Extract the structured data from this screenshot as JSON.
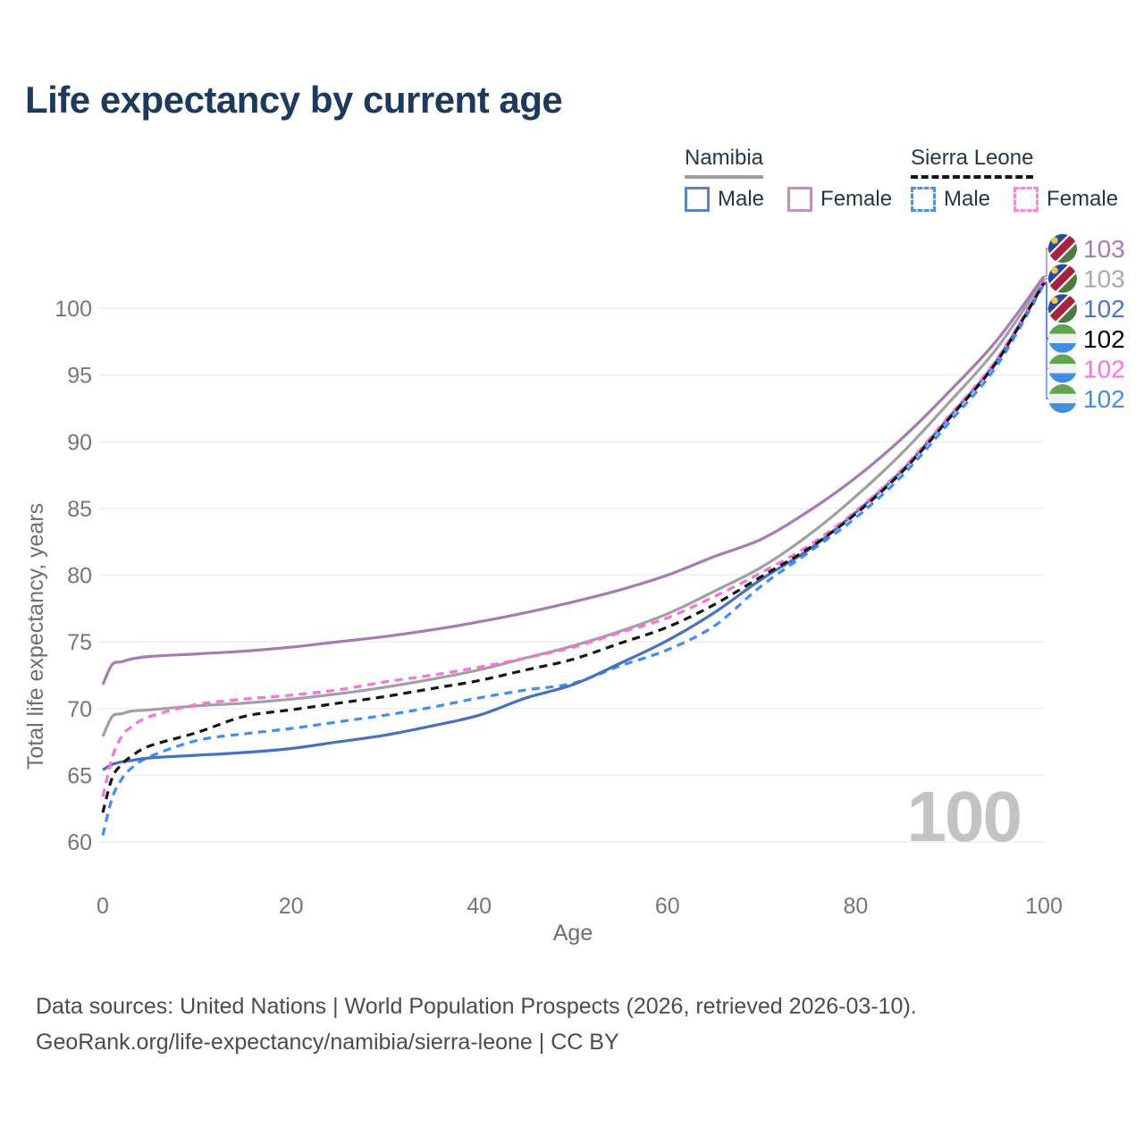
{
  "title": "Life expectancy by current age",
  "legend": {
    "groups": [
      {
        "name": "Namibia",
        "underline_style": "solid",
        "underline_color": "#9e9e9e",
        "items": [
          {
            "label": "Male",
            "swatch_color": "#5b84c4",
            "swatch_style": "solid"
          },
          {
            "label": "Female",
            "swatch_color": "#c28ec4",
            "swatch_style": "solid"
          }
        ]
      },
      {
        "name": "Sierra Leone",
        "underline_style": "dashed",
        "underline_color": "#151515",
        "items": [
          {
            "label": "Male",
            "swatch_color": "#4a90f4",
            "swatch_style": "dashed"
          },
          {
            "label": "Female",
            "swatch_color": "#ff85dc",
            "swatch_style": "dashed"
          }
        ]
      }
    ]
  },
  "chart_data": {
    "type": "line",
    "title": "Life expectancy by current age",
    "xlabel": "Age",
    "ylabel": "Total life expectancy, years",
    "xlim": [
      0,
      100
    ],
    "ylim": [
      60,
      103.5
    ],
    "x_ticks": [
      0,
      20,
      40,
      60,
      80,
      100
    ],
    "y_ticks": [
      60,
      65,
      70,
      75,
      80,
      85,
      90,
      95,
      100
    ],
    "grid": "horizontal",
    "watermark": "100",
    "x": [
      0,
      1,
      2,
      3,
      5,
      10,
      15,
      20,
      25,
      30,
      35,
      40,
      45,
      50,
      55,
      60,
      65,
      70,
      75,
      80,
      85,
      90,
      95,
      100
    ],
    "series": [
      {
        "name": "Namibia Female",
        "country": "Namibia",
        "sex": "Female",
        "color": "#a87ab3",
        "label_color": "#a87ab3",
        "dash": false,
        "z": 4,
        "flag": "namibia",
        "end_label": "103",
        "values": [
          71.8,
          73.3,
          73.5,
          73.7,
          73.9,
          74.1,
          74.3,
          74.6,
          75.0,
          75.4,
          75.9,
          76.5,
          77.2,
          78.0,
          78.9,
          80.0,
          81.4,
          82.7,
          84.8,
          87.3,
          90.3,
          93.8,
          97.6,
          102.4
        ]
      },
      {
        "name": "Namibia Both sexes",
        "country": "Namibia",
        "sex": "Both",
        "color": "#a0a0a0",
        "label_color": "#a9a9a9",
        "dash": false,
        "z": 3,
        "flag": "namibia",
        "end_label": "103",
        "values": [
          67.9,
          69.4,
          69.6,
          69.8,
          69.9,
          70.2,
          70.4,
          70.7,
          71.1,
          71.6,
          72.2,
          72.9,
          73.8,
          74.7,
          75.8,
          77.1,
          78.8,
          80.6,
          83.0,
          85.9,
          89.2,
          93.0,
          97.0,
          102.2
        ]
      },
      {
        "name": "Namibia Male",
        "country": "Namibia",
        "sex": "Male",
        "color": "#4671bd",
        "label_color": "#4a74c9",
        "dash": false,
        "z": 6,
        "flag": "namibia",
        "end_label": "102",
        "values": [
          65.4,
          65.8,
          66.0,
          66.1,
          66.3,
          66.5,
          66.7,
          67.0,
          67.5,
          68.0,
          68.7,
          69.5,
          70.8,
          71.8,
          73.4,
          75.1,
          77.2,
          79.7,
          81.9,
          84.7,
          87.9,
          91.9,
          96.1,
          101.9
        ]
      },
      {
        "name": "Sierra Leone Both sexes",
        "country": "Sierra Leone",
        "sex": "Both",
        "color": "#151515",
        "label_color": "#000000",
        "dash": true,
        "z": 8,
        "flag": "sierra-leone",
        "end_label": "102",
        "values": [
          62.2,
          64.8,
          65.8,
          66.4,
          67.2,
          68.2,
          69.4,
          69.9,
          70.4,
          70.9,
          71.5,
          72.1,
          72.9,
          73.7,
          74.9,
          76.1,
          77.8,
          79.9,
          82.0,
          84.6,
          87.8,
          91.8,
          96.0,
          101.9
        ]
      },
      {
        "name": "Sierra Leone Female",
        "country": "Sierra Leone",
        "sex": "Female",
        "color": "#fa71d7",
        "label_color": "#ff70d8",
        "dash": true,
        "z": 7,
        "flag": "sierra-leone",
        "end_label": "102",
        "values": [
          63.4,
          66.3,
          67.9,
          68.6,
          69.4,
          70.3,
          70.7,
          71.0,
          71.4,
          72.0,
          72.5,
          73.1,
          73.8,
          74.6,
          75.7,
          76.8,
          78.4,
          80.2,
          82.2,
          84.8,
          88.0,
          92.0,
          96.2,
          102.0
        ]
      },
      {
        "name": "Sierra Leone Male",
        "country": "Sierra Leone",
        "sex": "Male",
        "color": "#428ef2",
        "label_color": "#3f8ced",
        "dash": true,
        "z": 5,
        "flag": "sierra-leone",
        "end_label": "102",
        "values": [
          60.5,
          63.3,
          64.7,
          65.5,
          66.4,
          67.6,
          68.1,
          68.5,
          69.0,
          69.5,
          70.1,
          70.8,
          71.4,
          71.9,
          73.2,
          74.4,
          76.2,
          79.2,
          81.7,
          84.3,
          87.5,
          91.5,
          95.7,
          101.8
        ]
      }
    ],
    "end_label_rows": [
      0,
      1,
      2,
      3,
      4,
      5
    ],
    "legend_position": "top-right"
  },
  "icons": {
    "namibia": "namibia-flag-icon",
    "sierra-leone": "sierra-leone-flag-icon"
  },
  "colors": {
    "title_text": "#1d3a5c",
    "legend_text": "#22384f",
    "tick_text": "#767676",
    "axis_title_text": "#6f6f6f",
    "gridline": "#ebebeb",
    "watermark_text": "#c3c3c3",
    "footer_text": "#4c4c4c",
    "flag_namibia": {
      "blue": "#2b4a9b",
      "red": "#a62440",
      "white": "#ffffff",
      "green": "#4f7a3d",
      "sun": "#f2c738"
    },
    "flag_sierra_leone": {
      "green": "#63a24f",
      "white": "#f1f1f1",
      "blue": "#3e8fe0"
    }
  },
  "footer": {
    "line1": "Data sources: United Nations | World Population Prospects (2026, retrieved 2026-03-10).",
    "line2": "GeoRank.org/life-expectancy/namibia/sierra-leone | CC BY"
  }
}
